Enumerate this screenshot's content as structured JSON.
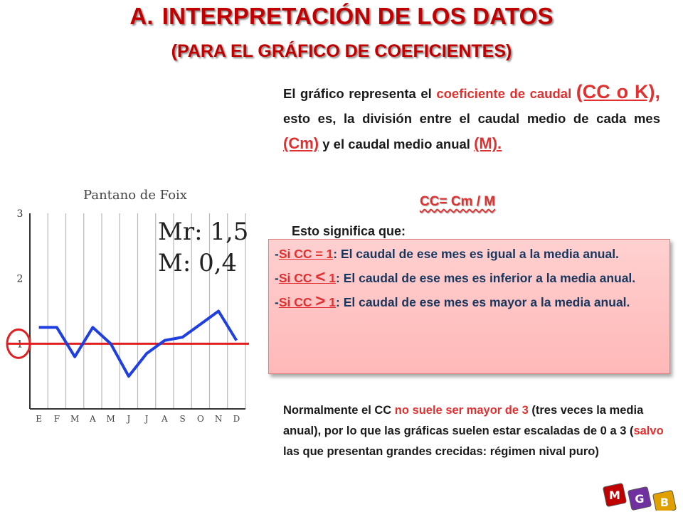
{
  "title": {
    "number": "A.",
    "main": "INTERPRETACIÓN DE LOS DATOS",
    "sub": "(PARA EL GRÁFICO DE COEFICIENTES)"
  },
  "intro": {
    "p1": "El gráfico representa el ",
    "term1": "coeficiente de caudal",
    "term2": "(CC o K),",
    "p2": " esto es, la división entre el caudal medio de cada mes ",
    "term3": "(Cm)",
    "p3": " y el caudal medio anual ",
    "term4": "(M)."
  },
  "formula": "CC= Cm / M",
  "means_label": "Esto significa que:",
  "rules": [
    {
      "dash": "-",
      "cond_a": "Si CC ",
      "sym": "=",
      "cond_b": " 1",
      "text": ": El caudal de ese mes es igual a la media anual."
    },
    {
      "dash": "-",
      "cond_a": "Si CC ",
      "sym": "<",
      "cond_b": " 1",
      "text": ": El caudal de ese mes es inferior a la media anual."
    },
    {
      "dash": "-",
      "cond_a": "Si CC ",
      "sym": ">",
      "cond_b": " 1",
      "text": ": El caudal de ese mes es mayor a la media anual."
    }
  ],
  "note": {
    "a": "Normalmente el CC ",
    "b": "no suele ser mayor de 3",
    "c": " (tres veces la media anual), por lo que las gráficas suelen estar escaladas de 0 a 3 (",
    "d": "salvo",
    "e": " las que presentan grandes crecidas: régimen nival puro)"
  },
  "chart_data": {
    "type": "line",
    "title": "Pantano de Foix",
    "annotations": [
      "Mr: 1,5",
      "M: 0,4"
    ],
    "categories": [
      "E",
      "F",
      "M",
      "A",
      "M",
      "J",
      "J",
      "A",
      "S",
      "O",
      "N",
      "D"
    ],
    "values": [
      1.25,
      1.25,
      0.8,
      1.25,
      1.0,
      0.5,
      0.85,
      1.05,
      1.1,
      1.3,
      1.5,
      1.05
    ],
    "yticks": [
      "1",
      "2",
      "3"
    ],
    "ylim": [
      0,
      3
    ],
    "reference_line": 1,
    "line_color": "#1f3fe0",
    "reference_color": "#e02020",
    "grid": true
  },
  "logo": {
    "letters": [
      "M",
      "G",
      "B"
    ],
    "colors": [
      "#c00000",
      "#7030a0",
      "#e0a000"
    ]
  }
}
